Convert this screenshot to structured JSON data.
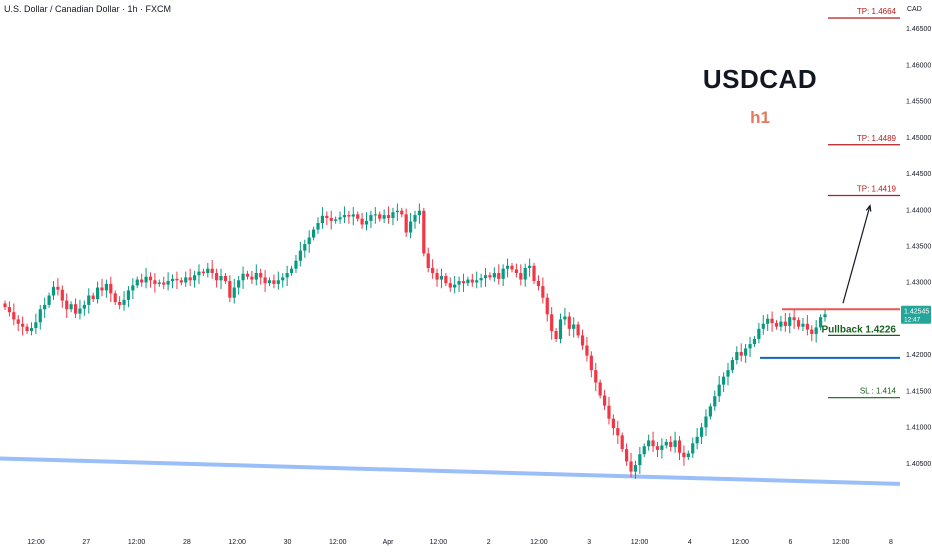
{
  "header": {
    "symbol": "U.S. Dollar / Canadian Dollar · 1h · FXCM",
    "currency": "CAD"
  },
  "annotation": {
    "pair": "USDCAD",
    "timeframe": "h1"
  },
  "price_badge": {
    "price": "1.42545",
    "countdown": "12:47",
    "color": "#26a69a"
  },
  "colors": {
    "up": "#089981",
    "down": "#f23645",
    "tp_line": "#b71c1c",
    "sl_line": "#1b5e20",
    "support": "#1565c0",
    "resistance": "#ef5350",
    "trendline": "#90b8f8"
  },
  "chart_data": {
    "type": "candlestick",
    "title": "U.S. Dollar / Canadian Dollar · 1h · FXCM",
    "ylim": [
      1.3985,
      1.4675
    ],
    "grid": false,
    "y_ticks": [
      "1.46500",
      "1.46000",
      "1.45500",
      "1.45000",
      "1.44500",
      "1.44000",
      "1.43500",
      "1.43000",
      "1.42500",
      "1.42000",
      "1.41500",
      "1.41000",
      "1.40500"
    ],
    "x_ticks": [
      "12:00",
      "27",
      "12:00",
      "28",
      "12:00",
      "30",
      "12:00",
      "Apr",
      "12:00",
      "2",
      "12:00",
      "3",
      "12:00",
      "4",
      "12:00",
      "6",
      "12:00",
      "8"
    ],
    "close_path": [
      1.4265,
      1.4258,
      1.4248,
      1.4242,
      1.4238,
      1.4232,
      1.4236,
      1.4244,
      1.4262,
      1.4268,
      1.4281,
      1.4293,
      1.4289,
      1.4274,
      1.4262,
      1.4269,
      1.4256,
      1.4263,
      1.4268,
      1.4281,
      1.4276,
      1.4292,
      1.4288,
      1.4297,
      1.4284,
      1.4272,
      1.4268,
      1.4275,
      1.4288,
      1.4295,
      1.4303,
      1.4299,
      1.4307,
      1.4302,
      1.4297,
      1.4299,
      1.4296,
      1.4301,
      1.4304,
      1.4302,
      1.4299,
      1.4306,
      1.4302,
      1.4309,
      1.4314,
      1.4312,
      1.4318,
      1.4312,
      1.4302,
      1.4308,
      1.4301,
      1.4278,
      1.4292,
      1.4302,
      1.4311,
      1.4307,
      1.4303,
      1.4312,
      1.4306,
      1.4298,
      1.4302,
      1.4297,
      1.4302,
      1.4306,
      1.4312,
      1.4318,
      1.4329,
      1.4343,
      1.4352,
      1.4361,
      1.4372,
      1.4381,
      1.4391,
      1.4388,
      1.4384,
      1.4386,
      1.4389,
      1.4392,
      1.439,
      1.4393,
      1.4387,
      1.4379,
      1.4384,
      1.4392,
      1.4393,
      1.4387,
      1.4392,
      1.4388,
      1.4396,
      1.4398,
      1.4393,
      1.4368,
      1.4383,
      1.4392,
      1.4398,
      1.4339,
      1.4319,
      1.4312,
      1.4303,
      1.4308,
      1.4298,
      1.4292,
      1.4296,
      1.4301,
      1.4298,
      1.4303,
      1.4299,
      1.4302,
      1.4305,
      1.4309,
      1.4306,
      1.4312,
      1.4304,
      1.4318,
      1.4322,
      1.4317,
      1.4312,
      1.4303,
      1.4319,
      1.4322,
      1.4301,
      1.4294,
      1.4278,
      1.4255,
      1.4232,
      1.4221,
      1.4248,
      1.4252,
      1.4235,
      1.4241,
      1.4226,
      1.4212,
      1.4198,
      1.4178,
      1.4161,
      1.4143,
      1.4129,
      1.4111,
      1.4098,
      1.4088,
      1.4069,
      1.4052,
      1.4038,
      1.4047,
      1.4062,
      1.4073,
      1.4081,
      1.4073,
      1.4068,
      1.4074,
      1.4079,
      1.4072,
      1.4081,
      1.4064,
      1.4058,
      1.4063,
      1.4077,
      1.4086,
      1.4099,
      1.4114,
      1.4128,
      1.4142,
      1.4158,
      1.4169,
      1.4178,
      1.4192,
      1.4203,
      1.4198,
      1.4208,
      1.4214,
      1.4221,
      1.4235,
      1.4242,
      1.4249,
      1.4243,
      1.4238,
      1.4245,
      1.4239,
      1.4251,
      1.4247,
      1.4238,
      1.4242,
      1.4234,
      1.4228,
      1.4237,
      1.4251,
      1.4255
    ],
    "current_price": 1.42545,
    "levels": [
      {
        "label": "TP: 1.4664",
        "price": 1.4664
      },
      {
        "label": "TP: 1.4489",
        "price": 1.4489
      },
      {
        "label": "TP: 1.4419",
        "price": 1.4419
      },
      {
        "label": "Pullback 1.4226",
        "price": 1.4226
      },
      {
        "label": "SL : 1.414",
        "price": 1.414
      }
    ],
    "resistance_price": 1.4262,
    "support_price": 1.4195,
    "trendline": {
      "start_price": 1.4056,
      "end_price": 1.4021
    },
    "projection_target": 1.4405
  }
}
